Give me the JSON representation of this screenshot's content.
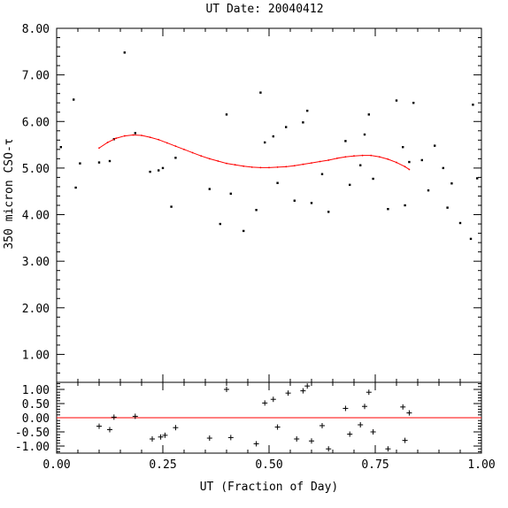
{
  "chart_data": [
    {
      "type": "scatter",
      "title": "UT Date: 20040412",
      "ylabel": "350 micron CSO-τ",
      "xlabel": "",
      "xlim": [
        0.0,
        1.0
      ],
      "ylim": [
        0.4,
        8.0
      ],
      "yticks": [
        "1.00",
        "2.00",
        "3.00",
        "4.00",
        "5.00",
        "6.00",
        "7.00",
        "8.00"
      ],
      "grid": false,
      "series": [
        {
          "kind": "points",
          "color": "#000000",
          "points": [
            [
              0.01,
              5.45
            ],
            [
              0.04,
              6.47
            ],
            [
              0.045,
              4.58
            ],
            [
              0.055,
              5.1
            ],
            [
              0.1,
              5.12
            ],
            [
              0.125,
              5.15
            ],
            [
              0.135,
              5.62
            ],
            [
              0.16,
              7.48
            ],
            [
              0.185,
              5.75
            ],
            [
              0.22,
              4.92
            ],
            [
              0.24,
              4.95
            ],
            [
              0.25,
              5.0
            ],
            [
              0.27,
              4.17
            ],
            [
              0.28,
              5.22
            ],
            [
              0.36,
              4.55
            ],
            [
              0.385,
              3.8
            ],
            [
              0.4,
              6.15
            ],
            [
              0.41,
              4.45
            ],
            [
              0.44,
              3.65
            ],
            [
              0.47,
              4.1
            ],
            [
              0.48,
              6.62
            ],
            [
              0.49,
              5.55
            ],
            [
              0.51,
              5.68
            ],
            [
              0.52,
              4.68
            ],
            [
              0.54,
              5.88
            ],
            [
              0.56,
              4.3
            ],
            [
              0.58,
              5.98
            ],
            [
              0.59,
              6.23
            ],
            [
              0.6,
              4.25
            ],
            [
              0.625,
              4.87
            ],
            [
              0.64,
              4.06
            ],
            [
              0.68,
              5.58
            ],
            [
              0.69,
              4.64
            ],
            [
              0.715,
              5.06
            ],
            [
              0.725,
              5.72
            ],
            [
              0.735,
              6.15
            ],
            [
              0.745,
              4.77
            ],
            [
              0.78,
              4.12
            ],
            [
              0.8,
              6.45
            ],
            [
              0.815,
              5.45
            ],
            [
              0.82,
              4.2
            ],
            [
              0.83,
              5.13
            ],
            [
              0.84,
              6.4
            ],
            [
              0.86,
              5.17
            ],
            [
              0.875,
              4.52
            ],
            [
              0.89,
              5.48
            ],
            [
              0.91,
              5.0
            ],
            [
              0.92,
              4.15
            ],
            [
              0.93,
              4.67
            ],
            [
              0.95,
              3.82
            ],
            [
              0.975,
              3.48
            ],
            [
              0.98,
              6.36
            ],
            [
              0.99,
              4.78
            ]
          ]
        },
        {
          "kind": "fit",
          "color": "#ff0000",
          "x": [
            0.1,
            0.12,
            0.14,
            0.16,
            0.18,
            0.2,
            0.22,
            0.24,
            0.26,
            0.28,
            0.3,
            0.32,
            0.34,
            0.36,
            0.38,
            0.4,
            0.42,
            0.44,
            0.46,
            0.48,
            0.5,
            0.52,
            0.54,
            0.56,
            0.58,
            0.6,
            0.62,
            0.64,
            0.66,
            0.68,
            0.7,
            0.72,
            0.74,
            0.76,
            0.78,
            0.8,
            0.82,
            0.83
          ],
          "y": [
            5.43,
            5.55,
            5.64,
            5.69,
            5.71,
            5.7,
            5.66,
            5.61,
            5.54,
            5.47,
            5.4,
            5.33,
            5.26,
            5.2,
            5.15,
            5.1,
            5.07,
            5.04,
            5.02,
            5.01,
            5.01,
            5.02,
            5.03,
            5.05,
            5.08,
            5.11,
            5.14,
            5.17,
            5.21,
            5.24,
            5.26,
            5.27,
            5.27,
            5.24,
            5.19,
            5.12,
            5.03,
            4.97
          ]
        }
      ]
    },
    {
      "type": "scatter",
      "xlabel": "UT (Fraction of Day)",
      "ylabel": "",
      "xlim": [
        0.0,
        1.0
      ],
      "ylim": [
        -1.25,
        1.25
      ],
      "xticks": [
        "0.00",
        "0.25",
        "0.50",
        "0.75",
        "1.00"
      ],
      "yticks": [
        "-1.00",
        "-0.50",
        "0.00",
        "0.50",
        "1.00"
      ],
      "grid": false,
      "reference_line": {
        "y": 0.0,
        "color": "#ff0000"
      },
      "series": [
        {
          "kind": "residuals",
          "color": "#000000",
          "points": [
            [
              0.1,
              -0.3
            ],
            [
              0.125,
              -0.42
            ],
            [
              0.135,
              0.02
            ],
            [
              0.185,
              0.05
            ],
            [
              0.225,
              -0.75
            ],
            [
              0.245,
              -0.68
            ],
            [
              0.255,
              -0.62
            ],
            [
              0.28,
              -0.35
            ],
            [
              0.36,
              -0.72
            ],
            [
              0.4,
              1.0
            ],
            [
              0.41,
              -0.7
            ],
            [
              0.47,
              -0.92
            ],
            [
              0.49,
              0.52
            ],
            [
              0.51,
              0.65
            ],
            [
              0.52,
              -0.33
            ],
            [
              0.545,
              0.87
            ],
            [
              0.565,
              -0.75
            ],
            [
              0.58,
              0.95
            ],
            [
              0.59,
              1.12
            ],
            [
              0.6,
              -0.82
            ],
            [
              0.625,
              -0.28
            ],
            [
              0.64,
              -1.1
            ],
            [
              0.68,
              0.33
            ],
            [
              0.69,
              -0.58
            ],
            [
              0.715,
              -0.25
            ],
            [
              0.725,
              0.4
            ],
            [
              0.735,
              0.9
            ],
            [
              0.745,
              -0.5
            ],
            [
              0.78,
              -1.1
            ],
            [
              0.815,
              0.38
            ],
            [
              0.82,
              -0.8
            ],
            [
              0.83,
              0.17
            ]
          ]
        }
      ]
    }
  ]
}
